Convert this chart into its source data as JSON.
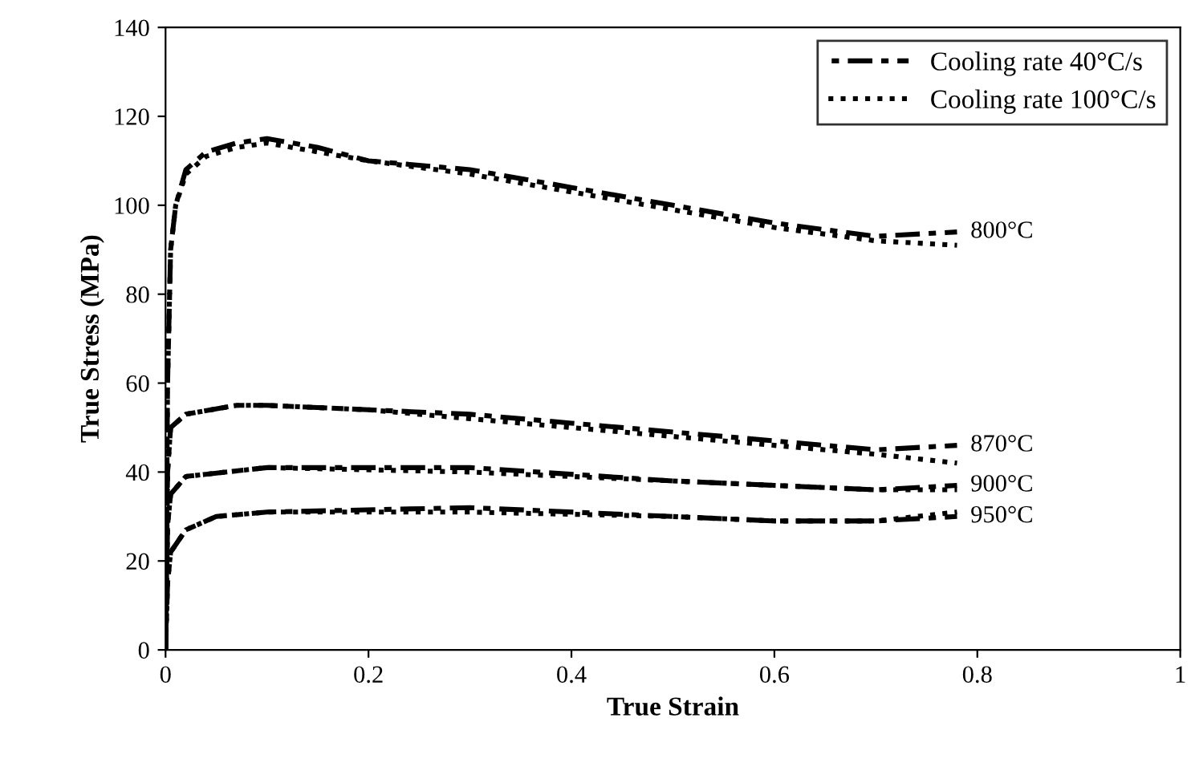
{
  "chart_data": {
    "type": "line",
    "xlabel": "True Strain",
    "ylabel": "True Stress (MPa)",
    "xlim": [
      0,
      1
    ],
    "xticks": [
      0,
      0.2,
      0.4,
      0.6,
      0.8,
      1
    ],
    "ylim": [
      0,
      140
    ],
    "yticks": [
      0,
      20,
      40,
      60,
      80,
      100,
      120,
      140
    ],
    "grid": false,
    "legend": "top right",
    "marker": "none",
    "series": [
      {
        "name": "Cooling rate 40°C/s",
        "color": "#000000",
        "line_style": "dashed",
        "x": [
          0,
          0.002,
          0.005,
          0.01,
          0.02,
          0.04,
          0.07,
          0.1,
          0.15,
          0.2,
          0.3,
          0.4,
          0.5,
          0.6,
          0.7,
          0.78
        ],
        "values": [
          0,
          60,
          90,
          100,
          108,
          112,
          114,
          115,
          113,
          110,
          108,
          104,
          100,
          96,
          93,
          94
        ]
      },
      {
        "name": "Cooling rate 100°C/s",
        "color": "#000000",
        "line_style": "dotted",
        "x": [
          0,
          0.002,
          0.005,
          0.01,
          0.02,
          0.04,
          0.07,
          0.1,
          0.15,
          0.2,
          0.3,
          0.4,
          0.5,
          0.6,
          0.7,
          0.78
        ],
        "values": [
          0,
          60,
          90,
          100,
          107,
          111,
          113,
          114,
          112,
          110,
          107,
          103,
          99,
          95,
          92,
          91
        ]
      },
      {
        "color": "#000000",
        "line_style": "dashed",
        "x": [
          0,
          0.002,
          0.005,
          0.02,
          0.07,
          0.1,
          0.2,
          0.3,
          0.4,
          0.5,
          0.6,
          0.7,
          0.78
        ],
        "values": [
          0,
          40,
          50,
          53,
          55,
          55,
          54,
          53,
          51,
          49,
          47,
          45,
          46
        ]
      },
      {
        "color": "#000000",
        "line_style": "dotted",
        "x": [
          0,
          0.002,
          0.005,
          0.02,
          0.07,
          0.1,
          0.2,
          0.3,
          0.4,
          0.5,
          0.6,
          0.7,
          0.78
        ],
        "values": [
          0,
          40,
          50,
          53,
          55,
          55,
          54,
          52,
          50,
          48,
          46,
          44,
          42
        ]
      },
      {
        "color": "#000000",
        "line_style": "dashed",
        "x": [
          0,
          0.002,
          0.005,
          0.02,
          0.1,
          0.3,
          0.5,
          0.6,
          0.7,
          0.78
        ],
        "values": [
          0,
          28,
          35,
          39,
          41,
          41,
          38,
          37,
          36,
          37
        ]
      },
      {
        "color": "#000000",
        "line_style": "dotted",
        "x": [
          0,
          0.002,
          0.005,
          0.02,
          0.1,
          0.3,
          0.5,
          0.6,
          0.7,
          0.78
        ],
        "values": [
          0,
          28,
          35,
          39,
          41,
          40,
          38,
          37,
          36,
          36
        ]
      },
      {
        "color": "#000000",
        "line_style": "dashed",
        "x": [
          0,
          0.002,
          0.005,
          0.02,
          0.05,
          0.1,
          0.3,
          0.5,
          0.6,
          0.7,
          0.78
        ],
        "values": [
          0,
          15,
          22,
          27,
          30,
          31,
          32,
          30,
          29,
          29,
          30
        ]
      },
      {
        "color": "#000000",
        "line_style": "dotted",
        "x": [
          0,
          0.002,
          0.005,
          0.02,
          0.05,
          0.1,
          0.3,
          0.5,
          0.6,
          0.7,
          0.78
        ],
        "values": [
          0,
          15,
          22,
          27,
          30,
          31,
          31,
          30,
          29,
          29,
          31
        ]
      }
    ],
    "annotations": [
      "800°C",
      "870°C",
      "900°C",
      "950°C"
    ]
  }
}
